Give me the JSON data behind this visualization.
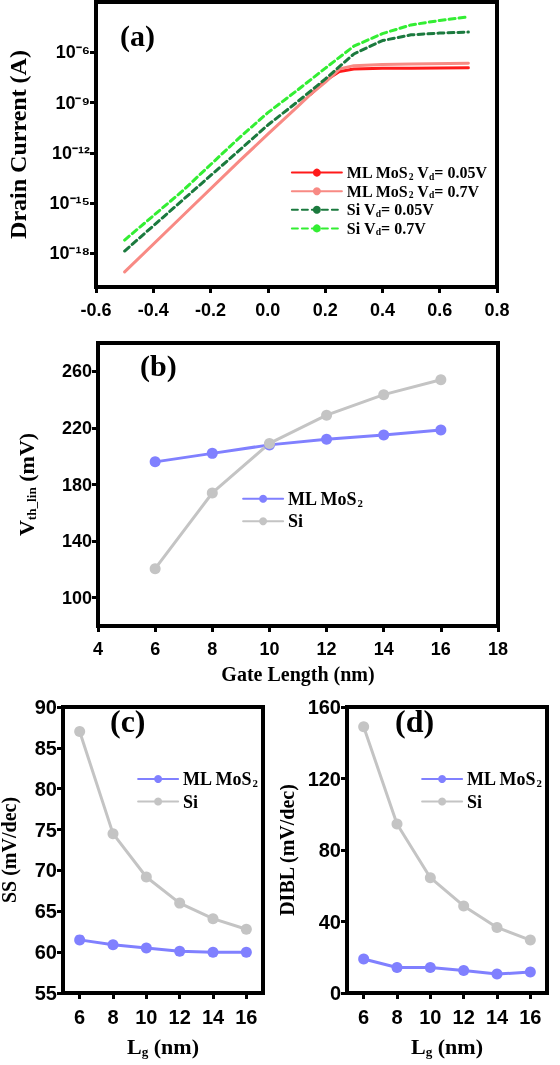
{
  "chart_data": [
    {
      "type": "line",
      "ylabel": "Drain Current (A)",
      "log": "y",
      "grid": false,
      "legend": "bottom right",
      "marker": "none",
      "annotations": [
        "(a)"
      ],
      "xlim": [
        -0.6,
        0.8
      ],
      "xticks": [
        -0.6,
        -0.4,
        -0.2,
        {
          "value": 0,
          "label": "0.0"
        },
        0.2,
        0.4,
        0.6,
        0.8
      ],
      "ylim": [
        1e-20,
        0.001
      ],
      "yticks": [
        {
          "value": 1e-18,
          "label": "10⁻¹⁸"
        },
        {
          "value": 1e-15,
          "label": "10⁻¹⁵"
        },
        {
          "value": 1e-12,
          "label": "10⁻¹²"
        },
        {
          "value": 1e-09,
          "label": "10⁻⁹"
        },
        {
          "value": 1e-06,
          "label": "10⁻⁶"
        }
      ],
      "series": [
        {
          "name": "ML MoS$_{2}$ V$_{d}$= 0.05V",
          "color": "#ff1a1a",
          "line_style": "solid",
          "x": [
            0.15,
            0.2,
            0.25,
            0.3,
            0.4,
            0.5,
            0.7
          ],
          "values": [
            3.2e-09,
            2e-08,
            7.1e-08,
            1e-07,
            1.1e-07,
            1.1e-07,
            1.2e-07
          ]
        },
        {
          "name": "ML MoS$_{2}$ V$_{d}$= 0.7V",
          "color": "#f88a84",
          "line_style": "solid",
          "x": [
            -0.5,
            -0.3,
            -0.1,
            0,
            0.1,
            0.15,
            0.2,
            0.25,
            0.3,
            0.4,
            0.5,
            0.7
          ],
          "values": [
            7.9e-20,
            1.6e-16,
            3.2e-13,
            1.3e-11,
            5e-10,
            3.2e-09,
            1.6e-08,
            1e-07,
            1.6e-07,
            1.9e-07,
            2e-07,
            2.2e-07
          ]
        },
        {
          "name": "Si V$_{d}$= 0.05V",
          "color": "#1b7a3e",
          "line_style": "dashed",
          "x": [
            -0.5,
            -0.3,
            -0.1,
            0,
            0.1,
            0.2,
            0.3,
            0.4,
            0.5,
            0.6,
            0.7
          ],
          "values": [
            1.4e-18,
            1.4e-15,
            1.4e-12,
            4.6e-11,
            1e-09,
            2.5e-08,
            7.9e-07,
            5e-06,
            1.1e-05,
            1.4e-05,
            1.6e-05
          ]
        },
        {
          "name": "Si V$_{d}$= 0.7V",
          "color": "#33ee33",
          "line_style": "dashed",
          "x": [
            -0.5,
            -0.3,
            -0.1,
            0,
            0.1,
            0.2,
            0.3,
            0.4,
            0.5,
            0.6,
            0.7
          ],
          "values": [
            6.3e-18,
            5e-15,
            7.9e-12,
            2.5e-10,
            5e-09,
            1.1e-07,
            2.3e-06,
            1.3e-05,
            4.3e-05,
            7.9e-05,
            0.00013
          ]
        }
      ]
    },
    {
      "type": "line",
      "xlabel": "Gate Length (nm)",
      "ylabel": "V$_{th_lin}$ (mV)",
      "grid": false,
      "legend": "right",
      "marker": "circle",
      "annotations": [
        "(b)"
      ],
      "xlim": [
        4,
        18
      ],
      "xticks": [
        4,
        6,
        8,
        10,
        12,
        14,
        16,
        18
      ],
      "ylim": [
        80,
        280
      ],
      "yticks": [
        100,
        140,
        180,
        220,
        260
      ],
      "x": [
        6,
        8,
        10,
        12,
        14,
        16
      ],
      "series": [
        {
          "name": "ML MoS$_{2}$",
          "color": "#8080ff",
          "values": [
            196,
            202,
            208,
            212,
            215,
            218.5
          ]
        },
        {
          "name": "Si",
          "color": "#c4c4c4",
          "values": [
            120.5,
            174,
            209,
            229,
            243.5,
            254
          ]
        }
      ]
    },
    {
      "type": "line",
      "xlabel": "L$_{g}$ (nm)",
      "ylabel": "SS (mV/dec)",
      "grid": false,
      "legend": "top right",
      "marker": "circle",
      "annotations": [
        "(c)"
      ],
      "xlim": [
        5,
        17
      ],
      "xticks": [
        6,
        8,
        10,
        12,
        14,
        16
      ],
      "ylim": [
        55,
        90
      ],
      "yticks": [
        55,
        60,
        65,
        70,
        75,
        80,
        85,
        90
      ],
      "x": [
        6,
        8,
        10,
        12,
        14,
        16
      ],
      "series": [
        {
          "name": "ML MoS$_{2}$",
          "color": "#8080ff",
          "values": [
            61.5,
            60.9,
            60.5,
            60.1,
            60,
            60
          ]
        },
        {
          "name": "Si",
          "color": "#c4c4c4",
          "values": [
            87,
            74.5,
            69.2,
            66,
            64.1,
            62.8
          ]
        }
      ]
    },
    {
      "type": "line",
      "xlabel": "L$_{g}$ (nm)",
      "ylabel": "DIBL (mV/dec)",
      "grid": false,
      "legend": "top right",
      "marker": "circle",
      "annotations": [
        "(d)"
      ],
      "xlim": [
        5,
        17
      ],
      "xticks": [
        6,
        8,
        10,
        12,
        14,
        16
      ],
      "ylim": [
        0,
        160
      ],
      "yticks": [
        0,
        40,
        80,
        120,
        160
      ],
      "x": [
        6,
        8,
        10,
        12,
        14,
        16
      ],
      "series": [
        {
          "name": "ML MoS$_{2}$",
          "color": "#8080ff",
          "values": [
            19,
            14.3,
            14.3,
            12.6,
            10.6,
            11.7
          ]
        },
        {
          "name": "Si",
          "color": "#c4c4c4",
          "values": [
            149,
            94.5,
            64.5,
            48.7,
            36.7,
            29.6
          ]
        }
      ]
    }
  ]
}
